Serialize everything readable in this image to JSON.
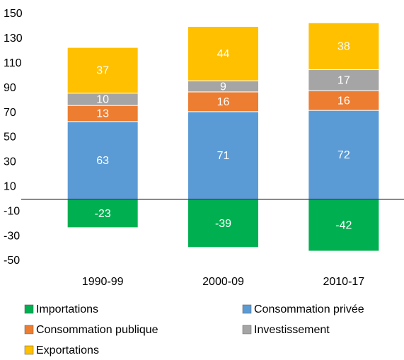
{
  "chart_data": {
    "type": "stacked-bar",
    "categories": [
      "1990-99",
      "2000-09",
      "2010-17"
    ],
    "series": [
      {
        "name": "Importations",
        "color": "#00b050",
        "values": [
          -23,
          -39,
          -42
        ]
      },
      {
        "name": "Consommation privée",
        "color": "#5b9bd5",
        "values": [
          63,
          71,
          72
        ]
      },
      {
        "name": "Consommation publique",
        "color": "#ed7d31",
        "values": [
          13,
          16,
          16
        ]
      },
      {
        "name": "Investissement",
        "color": "#a5a5a5",
        "values": [
          10,
          9,
          17
        ]
      },
      {
        "name": "Exportations",
        "color": "#ffc000",
        "values": [
          37,
          44,
          38
        ]
      }
    ],
    "ylim": [
      -50,
      150
    ],
    "yticks": [
      -50,
      -30,
      -10,
      10,
      30,
      50,
      70,
      90,
      110,
      130,
      150
    ],
    "grid": false
  }
}
